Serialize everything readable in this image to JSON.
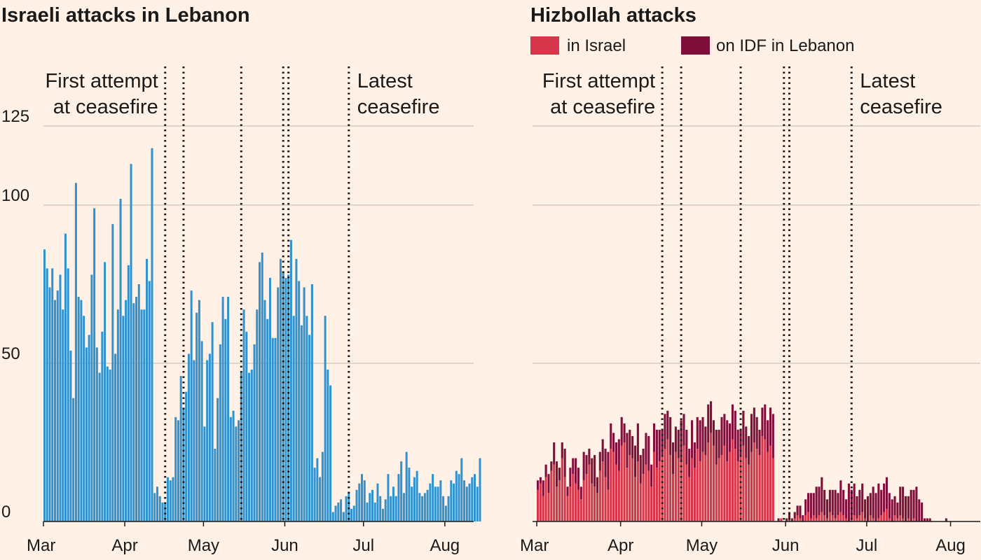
{
  "colors": {
    "background": "#fff1e5",
    "israeli_bar": "#2f92cf",
    "hizbollah_in_israel": "#d7354a",
    "hizbollah_on_idf": "#7f0f3a",
    "text": "#1a1a1a"
  },
  "chart_data": [
    {
      "type": "bar",
      "title": "Israeli attacks in Lebanon",
      "xlabel": "",
      "ylabel": "",
      "ylim": [
        0,
        125
      ],
      "yticks": [
        0,
        50,
        100,
        125
      ],
      "xlim": [
        "2024-03-01",
        "2024-08-12"
      ],
      "month_ticks": [
        {
          "label": "Mar",
          "date": "2024-03-01"
        },
        {
          "label": "Apr",
          "date": "2024-04-01"
        },
        {
          "label": "May",
          "date": "2024-05-01"
        },
        {
          "label": "Jun",
          "date": "2024-06-01"
        },
        {
          "label": "Jul",
          "date": "2024-07-01"
        },
        {
          "label": "Aug",
          "date": "2024-08-01"
        }
      ],
      "grid": true,
      "start_date": "2024-03-01",
      "series": [
        {
          "values": [
            86,
            80,
            74,
            80,
            70,
            73,
            78,
            67,
            91,
            80,
            54,
            39,
            107,
            71,
            70,
            65,
            55,
            59,
            78,
            99,
            55,
            47,
            60,
            82,
            49,
            48,
            94,
            53,
            67,
            102,
            65,
            70,
            81,
            113,
            69,
            71,
            75,
            67,
            67,
            83,
            76,
            118,
            9,
            11,
            8,
            6,
            6,
            14,
            13,
            14,
            33,
            32,
            46,
            36,
            41,
            53,
            73,
            51,
            66,
            70,
            57,
            30,
            51,
            53,
            63,
            23,
            39,
            56,
            71,
            64,
            71,
            33,
            35,
            30,
            32,
            47,
            67,
            60,
            47,
            48,
            56,
            67,
            82,
            85,
            70,
            64,
            77,
            58,
            58,
            74,
            83,
            79,
            77,
            78,
            89,
            65,
            83,
            76,
            62,
            74,
            65,
            59,
            75,
            17,
            20,
            14,
            22,
            65,
            48,
            43,
            3,
            5,
            6,
            7,
            3,
            8,
            9,
            4,
            5,
            10,
            12,
            15,
            13,
            6,
            9,
            10,
            6,
            12,
            8,
            4,
            7,
            15,
            8,
            11,
            8,
            15,
            19,
            9,
            22,
            17,
            11,
            14,
            16,
            9,
            8,
            9,
            10,
            12,
            15,
            11,
            11,
            13,
            8,
            5,
            8,
            13,
            12,
            16,
            15,
            20,
            13,
            11,
            12,
            14,
            15,
            11,
            20
          ]
        }
      ],
      "annotations": [
        {
          "date": "2024-04-16",
          "label_lines": [
            "First attempt",
            "at ceasefire"
          ],
          "side": "left"
        },
        {
          "date": "2024-04-23"
        },
        {
          "date": "2024-05-15"
        },
        {
          "date": "2024-05-31"
        },
        {
          "date": "2024-06-02"
        },
        {
          "date": "2024-06-25",
          "label_lines": [
            "Latest",
            "ceasefire"
          ],
          "side": "right"
        }
      ]
    },
    {
      "type": "bar",
      "stacked": true,
      "title": "Hizbollah attacks",
      "xlabel": "",
      "ylabel": "",
      "ylim": [
        0,
        125
      ],
      "yticks": [
        0,
        50,
        100,
        125
      ],
      "xlim": [
        "2024-03-01",
        "2024-08-12"
      ],
      "month_ticks": [
        {
          "label": "Mar",
          "date": "2024-03-01"
        },
        {
          "label": "Apr",
          "date": "2024-04-01"
        },
        {
          "label": "May",
          "date": "2024-05-01"
        },
        {
          "label": "Jun",
          "date": "2024-06-01"
        },
        {
          "label": "Jul",
          "date": "2024-07-01"
        },
        {
          "label": "Aug",
          "date": "2024-08-01"
        }
      ],
      "grid": true,
      "legend": "top-left",
      "start_date": "2024-03-01",
      "series": [
        {
          "name": "in Israel",
          "values": [
            10,
            12,
            8,
            14,
            9,
            16,
            18,
            11,
            13,
            20,
            14,
            8,
            11,
            15,
            12,
            10,
            7,
            13,
            15,
            18,
            12,
            11,
            9,
            16,
            19,
            14,
            10,
            23,
            22,
            18,
            16,
            24,
            25,
            17,
            21,
            20,
            14,
            19,
            12,
            15,
            18,
            16,
            11,
            22,
            17,
            19,
            21,
            23,
            26,
            21,
            15,
            22,
            20,
            19,
            24,
            18,
            14,
            20,
            17,
            23,
            19,
            22,
            21,
            25,
            28,
            24,
            18,
            20,
            21,
            24,
            19,
            22,
            26,
            23,
            19,
            21,
            24,
            20,
            18,
            22,
            25,
            23,
            21,
            27,
            26,
            22,
            24,
            20
          ],
          "offset": 0
        },
        {
          "name": "on IDF in Lebanon",
          "values": [
            3,
            2,
            5,
            4,
            6,
            3,
            7,
            8,
            4,
            5,
            9,
            3,
            6,
            5,
            8,
            7,
            4,
            9,
            6,
            5,
            8,
            10,
            5,
            6,
            7,
            9,
            12,
            8,
            6,
            7,
            10,
            9,
            6,
            11,
            8,
            7,
            10,
            12,
            9,
            8,
            10,
            11,
            7,
            9,
            12,
            10,
            8,
            11,
            9,
            12,
            10,
            8,
            9,
            13,
            10,
            11,
            9,
            12,
            8,
            10,
            13,
            11,
            9,
            12,
            10,
            8,
            11,
            9,
            12,
            10,
            13,
            9,
            11,
            12,
            10,
            8,
            11,
            10,
            9,
            12,
            11,
            10,
            8,
            9,
            11,
            10,
            12,
            14
          ],
          "offset": 0
        }
      ],
      "later_values": {
        "in_israel": [
          0,
          0,
          1,
          0,
          0,
          1,
          0,
          1,
          2,
          1,
          0,
          2,
          3,
          1,
          2,
          1,
          2,
          3,
          2,
          1,
          3,
          2,
          1,
          2,
          3,
          2,
          1,
          0,
          1,
          2,
          1,
          2,
          3,
          1,
          0,
          2,
          1,
          0,
          1,
          2,
          3,
          4,
          1,
          0,
          2,
          1,
          2,
          1,
          0,
          1,
          0,
          1,
          0,
          0,
          0,
          0,
          0,
          0,
          0,
          0,
          0,
          0,
          0,
          0,
          0,
          0,
          0,
          0,
          0,
          0,
          0,
          0,
          0,
          0,
          0,
          0,
          0,
          0,
          0,
          0,
          0,
          0,
          0,
          0
        ],
        "on_idf": [
          0,
          1,
          0,
          0,
          1,
          2,
          1,
          2,
          3,
          4,
          2,
          5,
          6,
          8,
          7,
          10,
          9,
          11,
          8,
          6,
          7,
          8,
          9,
          7,
          10,
          8,
          6,
          12,
          9,
          10,
          7,
          8,
          9,
          6,
          8,
          7,
          10,
          9,
          11,
          8,
          9,
          10,
          8,
          7,
          6,
          5,
          9,
          10,
          8,
          7,
          10,
          9,
          11,
          7,
          6,
          1,
          1,
          1,
          0,
          0,
          0,
          0,
          0,
          1,
          0,
          0,
          0,
          0,
          0,
          0,
          0,
          0,
          0,
          0,
          0,
          0,
          0,
          0,
          0,
          0,
          0,
          1,
          1,
          1
        ]
      },
      "annotations": [
        {
          "date": "2024-04-16",
          "label_lines": [
            "First attempt",
            "at ceasefire"
          ],
          "side": "left"
        },
        {
          "date": "2024-04-23"
        },
        {
          "date": "2024-05-15"
        },
        {
          "date": "2024-05-31"
        },
        {
          "date": "2024-06-02"
        },
        {
          "date": "2024-06-25",
          "label_lines": [
            "Latest",
            "ceasefire"
          ],
          "side": "right"
        }
      ]
    }
  ]
}
